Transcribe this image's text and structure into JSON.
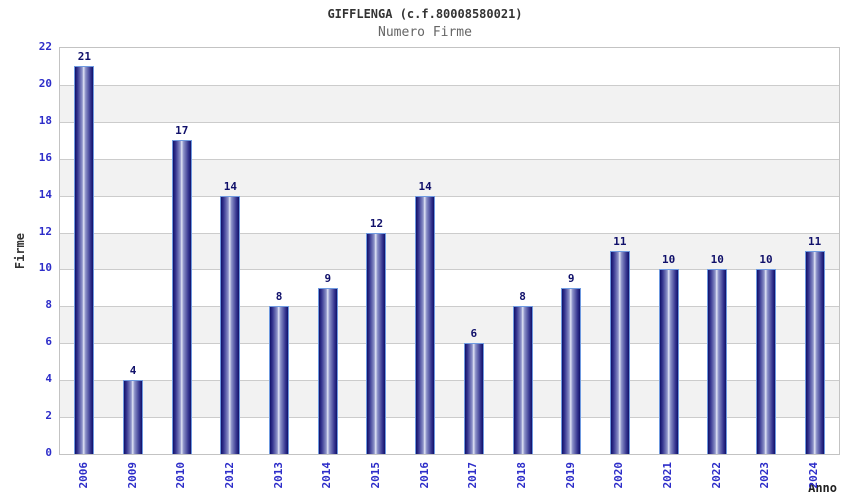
{
  "chart_data": {
    "type": "bar",
    "title": "GIFFLENGA (c.f.80008580021)",
    "subtitle": "Numero Firme",
    "xlabel": "Anno",
    "ylabel": "Firme",
    "categories": [
      "2006",
      "2009",
      "2010",
      "2012",
      "2013",
      "2014",
      "2015",
      "2016",
      "2017",
      "2018",
      "2019",
      "2020",
      "2021",
      "2022",
      "2023",
      "2024"
    ],
    "values": [
      21,
      4,
      17,
      14,
      8,
      9,
      12,
      14,
      6,
      8,
      9,
      11,
      10,
      10,
      10,
      11
    ],
    "ylim": [
      0,
      22
    ],
    "ytick_step": 2,
    "ytick_labels": [
      "22",
      "20",
      "18",
      "16",
      "14",
      "12",
      "10",
      "8",
      "6",
      "4",
      "2",
      "0"
    ],
    "grid": "horizontal-bands-alternating",
    "legend": "none",
    "colors": {
      "bar_dark": "#10106a",
      "bar_mid": "#3a3a93",
      "bar_light": "#e2e6f6",
      "bar_midlight": "#8d93c9",
      "bar_border": "#6f9ae0",
      "axis_text": "#2d2dc9",
      "value_text": "#10106a",
      "title_text": "#333333",
      "subtitle_text": "#666666",
      "band": "#f2f2f2",
      "gridline": "#cccccc",
      "plot_border": "#c3c3c3"
    }
  }
}
